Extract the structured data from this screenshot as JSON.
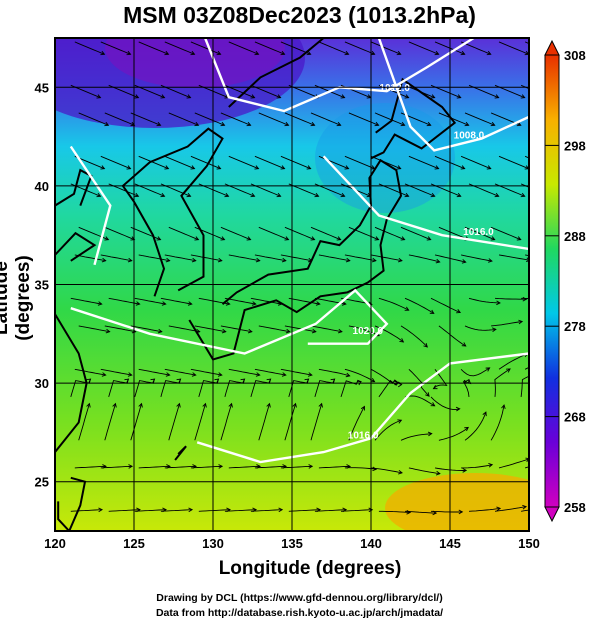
{
  "chart_data": {
    "type": "heatmap",
    "title": "MSM 03Z08Dec2023 (1013.2hPa)",
    "xlabel": "Longitude (degrees)",
    "ylabel": "Latitude  (degrees)",
    "xlim": [
      120,
      150
    ],
    "ylim": [
      22.5,
      47.5
    ],
    "x_ticks": [
      120,
      125,
      130,
      135,
      140,
      145,
      150
    ],
    "y_ticks": [
      25,
      30,
      35,
      40,
      45
    ],
    "colorbar": {
      "min": 258,
      "max": 308,
      "ticks": [
        258,
        268,
        278,
        288,
        298,
        308
      ],
      "colors": [
        "#d000c0",
        "#6a00d8",
        "#1030e0",
        "#00c8e8",
        "#20d860",
        "#c8e800",
        "#f8b000",
        "#e83000"
      ]
    },
    "grid": true,
    "isobars": [
      {
        "label": "1012.0",
        "lon": 141.5,
        "lat": 44.8
      },
      {
        "label": "1008.0",
        "lon": 146.2,
        "lat": 42.4
      },
      {
        "label": "1016.0",
        "lon": 146.8,
        "lat": 37.5
      },
      {
        "label": "1020.0",
        "lon": 139.8,
        "lat": 32.5
      },
      {
        "label": "1016.0",
        "lon": 139.5,
        "lat": 27.2
      }
    ]
  },
  "credits": {
    "line1": "Drawing by DCL (https://www.gfd-dennou.org/library/dcl/)",
    "line2": "Data from http://database.rish.kyoto-u.ac.jp/arch/jmadata/"
  }
}
